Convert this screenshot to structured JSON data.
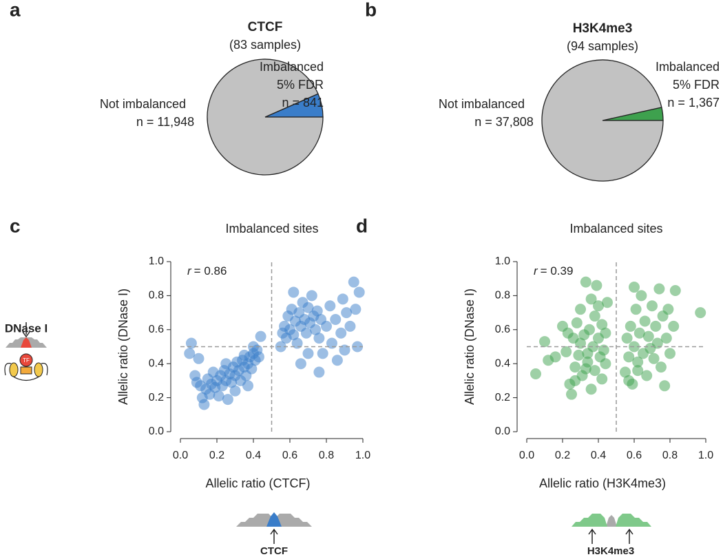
{
  "chart_data": [
    {
      "type": "pie",
      "panel": "a",
      "title": "CTCF",
      "subtitle": "(83 samples)",
      "categories": [
        [
          "Not imbalanced"
        ],
        [
          "Imbalanced",
          "5% FDR"
        ]
      ],
      "values": [
        11948,
        841
      ],
      "value_labels": [
        "n = 11,948",
        "n = 841"
      ],
      "colors": [
        "#c2c2c2",
        "#3a7dc9"
      ]
    },
    {
      "type": "pie",
      "panel": "b",
      "title": "H3K4me3",
      "subtitle": "(94 samples)",
      "categories": [
        [
          "Not imbalanced"
        ],
        [
          "Imbalanced",
          "5% FDR"
        ]
      ],
      "values": [
        37808,
        1367
      ],
      "value_labels": [
        "n = 37,808",
        "n = 1,367"
      ],
      "colors": [
        "#c2c2c2",
        "#3ea14e"
      ]
    },
    {
      "type": "scatter",
      "panel": "c",
      "title": "Imbalanced sites",
      "x_label": "Allelic ratio (CTCF)",
      "y_label": "Allelic ratio (DNase I)",
      "stat_symbol": "r",
      "stat_value": "= 0.86",
      "color": "#3a7dc9",
      "annotations": [
        "DNase I",
        "TF"
      ],
      "footer_label": "CTCF",
      "xlim": [
        0,
        1
      ],
      "ylim": [
        0,
        1
      ],
      "xticks": [
        {
          "value": 0,
          "label": "0.0"
        },
        {
          "value": 0.2,
          "label": "0.2"
        },
        {
          "value": 0.4,
          "label": "0.4"
        },
        {
          "value": 0.6,
          "label": "0.6"
        },
        {
          "value": 0.8,
          "label": "0.8"
        },
        {
          "value": 1,
          "label": "1.0"
        }
      ],
      "yticks": [
        {
          "value": 0,
          "label": "0.0"
        },
        {
          "value": 0.2,
          "label": "0.2"
        },
        {
          "value": 0.4,
          "label": "0.4"
        },
        {
          "value": 0.6,
          "label": "0.6"
        },
        {
          "value": 0.8,
          "label": "0.8"
        },
        {
          "value": 1,
          "label": "1.0"
        }
      ],
      "reference_lines": {
        "x": 0.5,
        "y": 0.5
      },
      "x": [
        0.05,
        0.06,
        0.08,
        0.09,
        0.1,
        0.11,
        0.12,
        0.13,
        0.14,
        0.15,
        0.16,
        0.17,
        0.18,
        0.19,
        0.2,
        0.21,
        0.22,
        0.23,
        0.24,
        0.25,
        0.25,
        0.26,
        0.27,
        0.28,
        0.29,
        0.3,
        0.3,
        0.31,
        0.32,
        0.33,
        0.34,
        0.35,
        0.35,
        0.36,
        0.37,
        0.38,
        0.39,
        0.4,
        0.41,
        0.42,
        0.43,
        0.44,
        0.4,
        0.37,
        0.55,
        0.56,
        0.57,
        0.58,
        0.59,
        0.6,
        0.61,
        0.62,
        0.63,
        0.64,
        0.65,
        0.66,
        0.67,
        0.68,
        0.69,
        0.7,
        0.71,
        0.72,
        0.73,
        0.74,
        0.75,
        0.76,
        0.77,
        0.78,
        0.8,
        0.82,
        0.83,
        0.85,
        0.86,
        0.88,
        0.89,
        0.9,
        0.91,
        0.93,
        0.95,
        0.96,
        0.98,
        0.7,
        0.76,
        0.62,
        0.97,
        0.66
      ],
      "values": [
        0.46,
        0.52,
        0.33,
        0.29,
        0.43,
        0.27,
        0.2,
        0.16,
        0.25,
        0.31,
        0.22,
        0.28,
        0.35,
        0.26,
        0.3,
        0.21,
        0.33,
        0.27,
        0.36,
        0.3,
        0.4,
        0.19,
        0.34,
        0.29,
        0.38,
        0.33,
        0.24,
        0.41,
        0.36,
        0.3,
        0.42,
        0.38,
        0.45,
        0.33,
        0.4,
        0.44,
        0.37,
        0.46,
        0.42,
        0.48,
        0.44,
        0.56,
        0.5,
        0.27,
        0.5,
        0.58,
        0.62,
        0.55,
        0.68,
        0.6,
        0.72,
        0.57,
        0.65,
        0.52,
        0.7,
        0.62,
        0.76,
        0.66,
        0.58,
        0.73,
        0.64,
        0.8,
        0.68,
        0.6,
        0.71,
        0.55,
        0.66,
        0.46,
        0.62,
        0.74,
        0.52,
        0.66,
        0.42,
        0.58,
        0.78,
        0.48,
        0.7,
        0.62,
        0.88,
        0.72,
        0.82,
        0.46,
        0.35,
        0.82,
        0.5,
        0.4
      ]
    },
    {
      "type": "scatter",
      "panel": "d",
      "title": "Imbalanced sites",
      "x_label": "Allelic ratio (H3K4me3)",
      "y_label": "Allelic ratio (DNase I)",
      "stat_symbol": "r",
      "stat_value": "= 0.39",
      "color": "#3ea14e",
      "footer_label": "H3K4me3",
      "xlim": [
        0,
        1
      ],
      "ylim": [
        0,
        1
      ],
      "xticks": [
        {
          "value": 0,
          "label": "0.0"
        },
        {
          "value": 0.2,
          "label": "0.2"
        },
        {
          "value": 0.4,
          "label": "0.4"
        },
        {
          "value": 0.6,
          "label": "0.6"
        },
        {
          "value": 0.8,
          "label": "0.8"
        },
        {
          "value": 1,
          "label": "1.0"
        }
      ],
      "yticks": [
        {
          "value": 0,
          "label": "0.0"
        },
        {
          "value": 0.2,
          "label": "0.2"
        },
        {
          "value": 0.4,
          "label": "0.4"
        },
        {
          "value": 0.6,
          "label": "0.6"
        },
        {
          "value": 0.8,
          "label": "0.8"
        },
        {
          "value": 1,
          "label": "1.0"
        }
      ],
      "reference_lines": {
        "x": 0.5,
        "y": 0.5
      },
      "x": [
        0.05,
        0.1,
        0.12,
        0.16,
        0.2,
        0.22,
        0.24,
        0.25,
        0.26,
        0.27,
        0.28,
        0.29,
        0.3,
        0.31,
        0.32,
        0.33,
        0.34,
        0.35,
        0.36,
        0.37,
        0.38,
        0.38,
        0.39,
        0.4,
        0.41,
        0.42,
        0.42,
        0.43,
        0.44,
        0.45,
        0.44,
        0.36,
        0.3,
        0.34,
        0.4,
        0.23,
        0.27,
        0.33,
        0.55,
        0.56,
        0.57,
        0.58,
        0.59,
        0.6,
        0.61,
        0.62,
        0.63,
        0.64,
        0.65,
        0.66,
        0.67,
        0.68,
        0.7,
        0.71,
        0.72,
        0.73,
        0.74,
        0.75,
        0.76,
        0.77,
        0.78,
        0.79,
        0.8,
        0.82,
        0.83,
        0.6,
        0.57,
        0.97,
        0.69,
        0.62
      ],
      "values": [
        0.34,
        0.53,
        0.42,
        0.44,
        0.62,
        0.47,
        0.28,
        0.22,
        0.55,
        0.38,
        0.64,
        0.45,
        0.72,
        0.33,
        0.57,
        0.88,
        0.41,
        0.6,
        0.25,
        0.5,
        0.68,
        0.36,
        0.86,
        0.55,
        0.44,
        0.63,
        0.31,
        0.48,
        0.58,
        0.76,
        0.4,
        0.78,
        0.52,
        0.46,
        0.74,
        0.58,
        0.3,
        0.37,
        0.35,
        0.55,
        0.44,
        0.62,
        0.28,
        0.5,
        0.72,
        0.41,
        0.58,
        0.8,
        0.46,
        0.65,
        0.33,
        0.56,
        0.74,
        0.43,
        0.62,
        0.52,
        0.84,
        0.38,
        0.68,
        0.27,
        0.55,
        0.72,
        0.46,
        0.62,
        0.83,
        0.85,
        0.3,
        0.7,
        0.49,
        0.36
      ]
    }
  ]
}
